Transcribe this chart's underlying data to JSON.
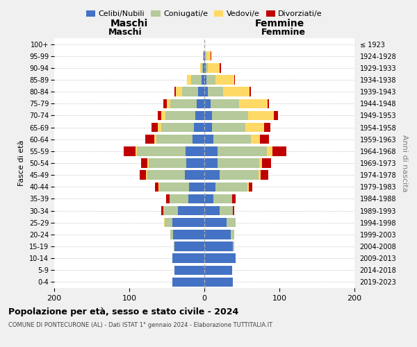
{
  "age_groups": [
    "0-4",
    "5-9",
    "10-14",
    "15-19",
    "20-24",
    "25-29",
    "30-34",
    "35-39",
    "40-44",
    "45-49",
    "50-54",
    "55-59",
    "60-64",
    "65-69",
    "70-74",
    "75-79",
    "80-84",
    "85-89",
    "90-94",
    "95-99",
    "100+"
  ],
  "birth_years": [
    "2019-2023",
    "2014-2018",
    "2009-2013",
    "2004-2008",
    "1999-2003",
    "1994-1998",
    "1989-1993",
    "1984-1988",
    "1979-1983",
    "1974-1978",
    "1969-1973",
    "1964-1968",
    "1959-1963",
    "1954-1958",
    "1949-1953",
    "1944-1948",
    "1939-1943",
    "1934-1938",
    "1929-1933",
    "1924-1928",
    "≤ 1923"
  ],
  "maschi": {
    "celibi": [
      43,
      40,
      43,
      40,
      42,
      43,
      35,
      21,
      20,
      26,
      24,
      25,
      16,
      14,
      12,
      10,
      8,
      4,
      2,
      1,
      0
    ],
    "coniugati": [
      0,
      0,
      0,
      1,
      3,
      10,
      20,
      25,
      40,
      50,
      50,
      65,
      48,
      43,
      40,
      35,
      22,
      14,
      2,
      1,
      0
    ],
    "vedovi": [
      0,
      0,
      0,
      0,
      0,
      1,
      0,
      0,
      1,
      2,
      2,
      2,
      3,
      5,
      5,
      5,
      8,
      5,
      2,
      0,
      0
    ],
    "divorziati": [
      0,
      0,
      0,
      0,
      0,
      0,
      2,
      5,
      5,
      8,
      8,
      15,
      12,
      8,
      5,
      5,
      2,
      0,
      0,
      0,
      0
    ]
  },
  "femmine": {
    "nubili": [
      38,
      37,
      42,
      38,
      35,
      30,
      20,
      12,
      15,
      20,
      18,
      18,
      12,
      10,
      10,
      8,
      5,
      3,
      2,
      1,
      0
    ],
    "coniugate": [
      0,
      0,
      0,
      2,
      5,
      12,
      18,
      25,
      42,
      52,
      55,
      65,
      50,
      45,
      48,
      38,
      20,
      12,
      3,
      2,
      0
    ],
    "vedove": [
      0,
      0,
      0,
      0,
      0,
      0,
      0,
      0,
      2,
      3,
      4,
      8,
      12,
      25,
      35,
      38,
      35,
      25,
      15,
      5,
      0
    ],
    "divorziate": [
      0,
      0,
      0,
      0,
      0,
      0,
      2,
      5,
      5,
      10,
      12,
      18,
      12,
      8,
      5,
      2,
      2,
      1,
      2,
      1,
      0
    ]
  },
  "colors": {
    "celibi_nubili": "#4472C4",
    "coniugati_e": "#B5C99A",
    "vedovi_e": "#FFD966",
    "divorziati_e": "#C00000"
  },
  "xlim": 200,
  "title": "Popolazione per età, sesso e stato civile - 2024",
  "subtitle": "COMUNE DI PONTECURONE (AL) - Dati ISTAT 1° gennaio 2024 - Elaborazione TUTTITALIA.IT",
  "ylabel_left": "Fasce di età",
  "ylabel_right": "Anni di nascita",
  "xlabel_maschi": "Maschi",
  "xlabel_femmine": "Femmine",
  "legend_labels": [
    "Celibi/Nubili",
    "Coniugati/e",
    "Vedovi/e",
    "Divorziati/e"
  ],
  "bg_color": "#f0f0f0",
  "plot_bg_color": "#ffffff"
}
